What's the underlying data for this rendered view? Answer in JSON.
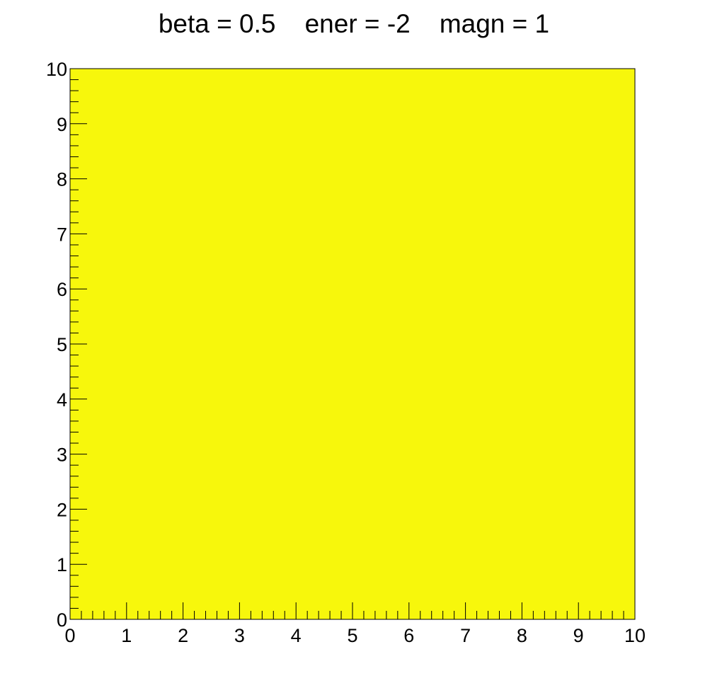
{
  "chart_data": {
    "type": "heatmap",
    "title": "beta = 0.5    ener = -2    magn = 1",
    "xlabel": "",
    "ylabel": "",
    "xlim": [
      0,
      10
    ],
    "ylim": [
      0,
      10
    ],
    "x_ticks": [
      "0",
      "1",
      "2",
      "3",
      "4",
      "5",
      "6",
      "7",
      "8",
      "9",
      "10"
    ],
    "y_ticks": [
      "0",
      "1",
      "2",
      "3",
      "4",
      "5",
      "6",
      "7",
      "8",
      "9",
      "10"
    ],
    "x_minor_per_major": 5,
    "y_minor_per_major": 5,
    "cells": [
      {
        "x": [
          0,
          10
        ],
        "y": [
          0,
          10
        ],
        "value": 1
      }
    ],
    "fill_color": "#f7f70c",
    "grid": false
  }
}
